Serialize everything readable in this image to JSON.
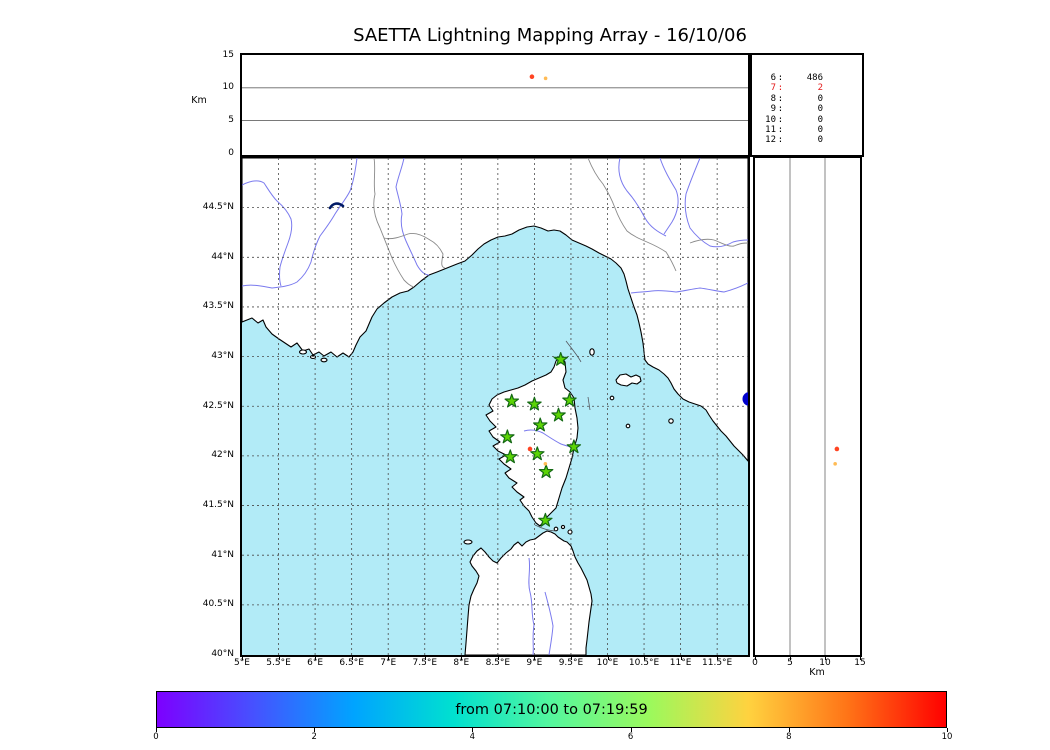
{
  "title": "SAETTA Lightning Mapping Array - 16/10/06",
  "alt_time_panel": {
    "axis_label": "Km",
    "yticks": [
      15,
      10,
      5,
      0
    ],
    "gridlines_km": [
      5,
      10
    ]
  },
  "stats_panel": {
    "rows": [
      {
        "stations": "6",
        "count": "486",
        "red": false
      },
      {
        "stations": "7",
        "count": "2",
        "red": true
      },
      {
        "stations": "8",
        "count": "0",
        "red": false
      },
      {
        "stations": "9",
        "count": "0",
        "red": false
      },
      {
        "stations": "10",
        "count": "0",
        "red": false
      },
      {
        "stations": "11",
        "count": "0",
        "red": false
      },
      {
        "stations": "12",
        "count": "0",
        "red": false
      }
    ]
  },
  "map_panel": {
    "lat_ticks": [
      "40°N",
      "40.5°N",
      "41°N",
      "41.5°N",
      "42°N",
      "42.5°N",
      "43°N",
      "43.5°N",
      "44°N",
      "44.5°N"
    ],
    "lon_ticks": [
      "5°E",
      "5.5°E",
      "6°E",
      "6.5°E",
      "7°E",
      "7.5°E",
      "8°E",
      "8.5°E",
      "9°E",
      "9.5°E",
      "10°E",
      "10.5°E",
      "11°E",
      "11.5°E"
    ],
    "sea_color": "#b2ebf7",
    "land_color": "#ffffff",
    "river_color": "#7a7aee",
    "border_color": "#8a8a8a",
    "station_fill": "#5cd405",
    "station_edge": "#146914",
    "lake_color": "#0000cc"
  },
  "alt_lat_panel": {
    "axis_label": "Km",
    "xticks": [
      0,
      5,
      10,
      15
    ],
    "gridlines_km": [
      5,
      10
    ]
  },
  "colorbar": {
    "label": "from 07:10:00 to 07:19:59",
    "ticks": [
      0,
      2,
      4,
      6,
      8,
      10
    ],
    "colors": [
      "#7d00ff",
      "#4553ff",
      "#00a4ff",
      "#00e0d0",
      "#55f79d",
      "#9cf95c",
      "#ffd23f",
      "#ff7417",
      "#ff0000"
    ]
  },
  "chart_data": {
    "type": "scatter",
    "title": "SAETTA Lightning Mapping Array - 16/10/06",
    "time_window_label": "from 07:10:00 to 07:19:59",
    "map_extent": {
      "lon_deg_e": [
        5.0,
        11.92
      ],
      "lat_deg_n": [
        40.0,
        45.0
      ]
    },
    "altitude_axis_km": {
      "range": [
        0,
        15
      ],
      "gridlines": [
        5,
        10
      ]
    },
    "colorbar_scale": {
      "range": [
        0,
        10
      ],
      "ticks": [
        0,
        2,
        4,
        6,
        8,
        10
      ]
    },
    "stations_lon_lat": [
      [
        9.36,
        42.97
      ],
      [
        8.69,
        42.55
      ],
      [
        9.0,
        42.52
      ],
      [
        9.48,
        42.56
      ],
      [
        9.33,
        42.41
      ],
      [
        9.08,
        42.31
      ],
      [
        8.63,
        42.19
      ],
      [
        9.54,
        42.09
      ],
      [
        9.04,
        42.02
      ],
      [
        8.67,
        41.99
      ],
      [
        9.16,
        41.84
      ],
      [
        9.15,
        41.35
      ]
    ],
    "sources": [
      {
        "lon_deg_e": 8.94,
        "lat_deg_n": 42.07,
        "altitude_km": 11.7,
        "time_frac": 0.573,
        "color": "#ff4422",
        "size": 2.3
      },
      {
        "lon_deg_e": 9.15,
        "lat_deg_n": 41.92,
        "altitude_km": 11.45,
        "time_frac": 0.6,
        "color": "#ffbb55",
        "size": 1.8
      }
    ],
    "sources_per_station_count": [
      {
        "stations": 6,
        "sources": 486
      },
      {
        "stations": 7,
        "sources": 2
      },
      {
        "stations": 8,
        "sources": 0
      },
      {
        "stations": 9,
        "sources": 0
      },
      {
        "stations": 10,
        "sources": 0
      },
      {
        "stations": 11,
        "sources": 0
      },
      {
        "stations": 12,
        "sources": 0
      }
    ]
  }
}
